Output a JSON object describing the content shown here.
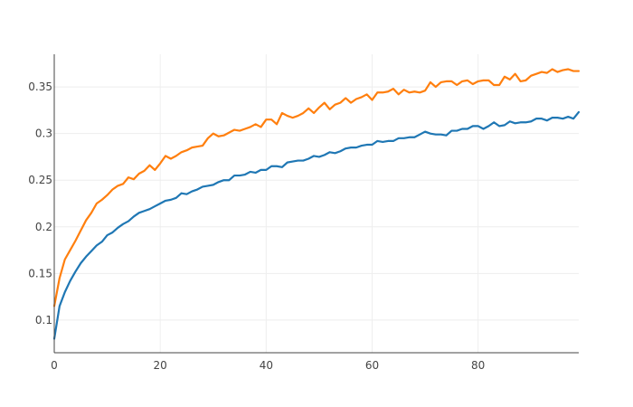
{
  "chart_data": {
    "type": "line",
    "title": "",
    "xlabel": "",
    "ylabel": "",
    "xlim": [
      0,
      99
    ],
    "ylim": [
      0.065,
      0.385
    ],
    "x_ticks": [
      0,
      20,
      40,
      60,
      80
    ],
    "x_tick_labels": [
      "0",
      "20",
      "40",
      "60",
      "80"
    ],
    "y_ticks": [
      0.1,
      0.15,
      0.2,
      0.25,
      0.3,
      0.35
    ],
    "y_tick_labels": [
      "0.1",
      "0.15",
      "0.2",
      "0.25",
      "0.3",
      "0.35"
    ],
    "grid": true,
    "legend": "none",
    "x": [
      0,
      1,
      2,
      3,
      4,
      5,
      6,
      7,
      8,
      9,
      10,
      11,
      12,
      13,
      14,
      15,
      16,
      17,
      18,
      19,
      20,
      21,
      22,
      23,
      24,
      25,
      26,
      27,
      28,
      29,
      30,
      31,
      32,
      33,
      34,
      35,
      36,
      37,
      38,
      39,
      40,
      41,
      42,
      43,
      44,
      45,
      46,
      47,
      48,
      49,
      50,
      51,
      52,
      53,
      54,
      55,
      56,
      57,
      58,
      59,
      60,
      61,
      62,
      63,
      64,
      65,
      66,
      67,
      68,
      69,
      70,
      71,
      72,
      73,
      74,
      75,
      76,
      77,
      78,
      79,
      80,
      81,
      82,
      83,
      84,
      85,
      86,
      87,
      88,
      89,
      90,
      91,
      92,
      93,
      94,
      95,
      96,
      97,
      98,
      99
    ],
    "series": [
      {
        "color": "#1f77b4",
        "values": [
          0.08,
          0.115,
          0.13,
          0.142,
          0.152,
          0.161,
          0.168,
          0.174,
          0.18,
          0.184,
          0.191,
          0.194,
          0.199,
          0.203,
          0.206,
          0.211,
          0.215,
          0.217,
          0.219,
          0.222,
          0.225,
          0.228,
          0.229,
          0.231,
          0.236,
          0.235,
          0.238,
          0.24,
          0.243,
          0.244,
          0.245,
          0.248,
          0.25,
          0.25,
          0.255,
          0.255,
          0.256,
          0.259,
          0.258,
          0.261,
          0.261,
          0.265,
          0.265,
          0.264,
          0.269,
          0.27,
          0.271,
          0.271,
          0.273,
          0.276,
          0.275,
          0.277,
          0.28,
          0.279,
          0.281,
          0.284,
          0.285,
          0.285,
          0.287,
          0.288,
          0.288,
          0.292,
          0.291,
          0.292,
          0.292,
          0.295,
          0.295,
          0.296,
          0.296,
          0.299,
          0.302,
          0.3,
          0.299,
          0.299,
          0.298,
          0.303,
          0.303,
          0.305,
          0.305,
          0.308,
          0.308,
          0.305,
          0.308,
          0.312,
          0.308,
          0.309,
          0.313,
          0.311,
          0.312,
          0.312,
          0.313,
          0.316,
          0.316,
          0.314,
          0.317,
          0.317,
          0.316,
          0.318,
          0.316,
          0.323
        ]
      },
      {
        "color": "#ff7f0e",
        "values": [
          0.115,
          0.145,
          0.165,
          0.175,
          0.185,
          0.196,
          0.207,
          0.215,
          0.225,
          0.229,
          0.234,
          0.24,
          0.244,
          0.246,
          0.253,
          0.251,
          0.257,
          0.26,
          0.266,
          0.261,
          0.268,
          0.276,
          0.273,
          0.276,
          0.28,
          0.282,
          0.285,
          0.286,
          0.287,
          0.295,
          0.3,
          0.297,
          0.298,
          0.301,
          0.304,
          0.303,
          0.305,
          0.307,
          0.31,
          0.307,
          0.315,
          0.315,
          0.31,
          0.322,
          0.319,
          0.317,
          0.319,
          0.322,
          0.327,
          0.322,
          0.328,
          0.333,
          0.326,
          0.331,
          0.333,
          0.338,
          0.333,
          0.337,
          0.339,
          0.342,
          0.336,
          0.344,
          0.344,
          0.345,
          0.348,
          0.342,
          0.347,
          0.344,
          0.345,
          0.344,
          0.346,
          0.355,
          0.35,
          0.355,
          0.356,
          0.356,
          0.352,
          0.356,
          0.357,
          0.353,
          0.356,
          0.357,
          0.357,
          0.352,
          0.352,
          0.361,
          0.358,
          0.364,
          0.356,
          0.357,
          0.362,
          0.364,
          0.366,
          0.365,
          0.369,
          0.366,
          0.368,
          0.369,
          0.367,
          0.367
        ]
      }
    ]
  }
}
